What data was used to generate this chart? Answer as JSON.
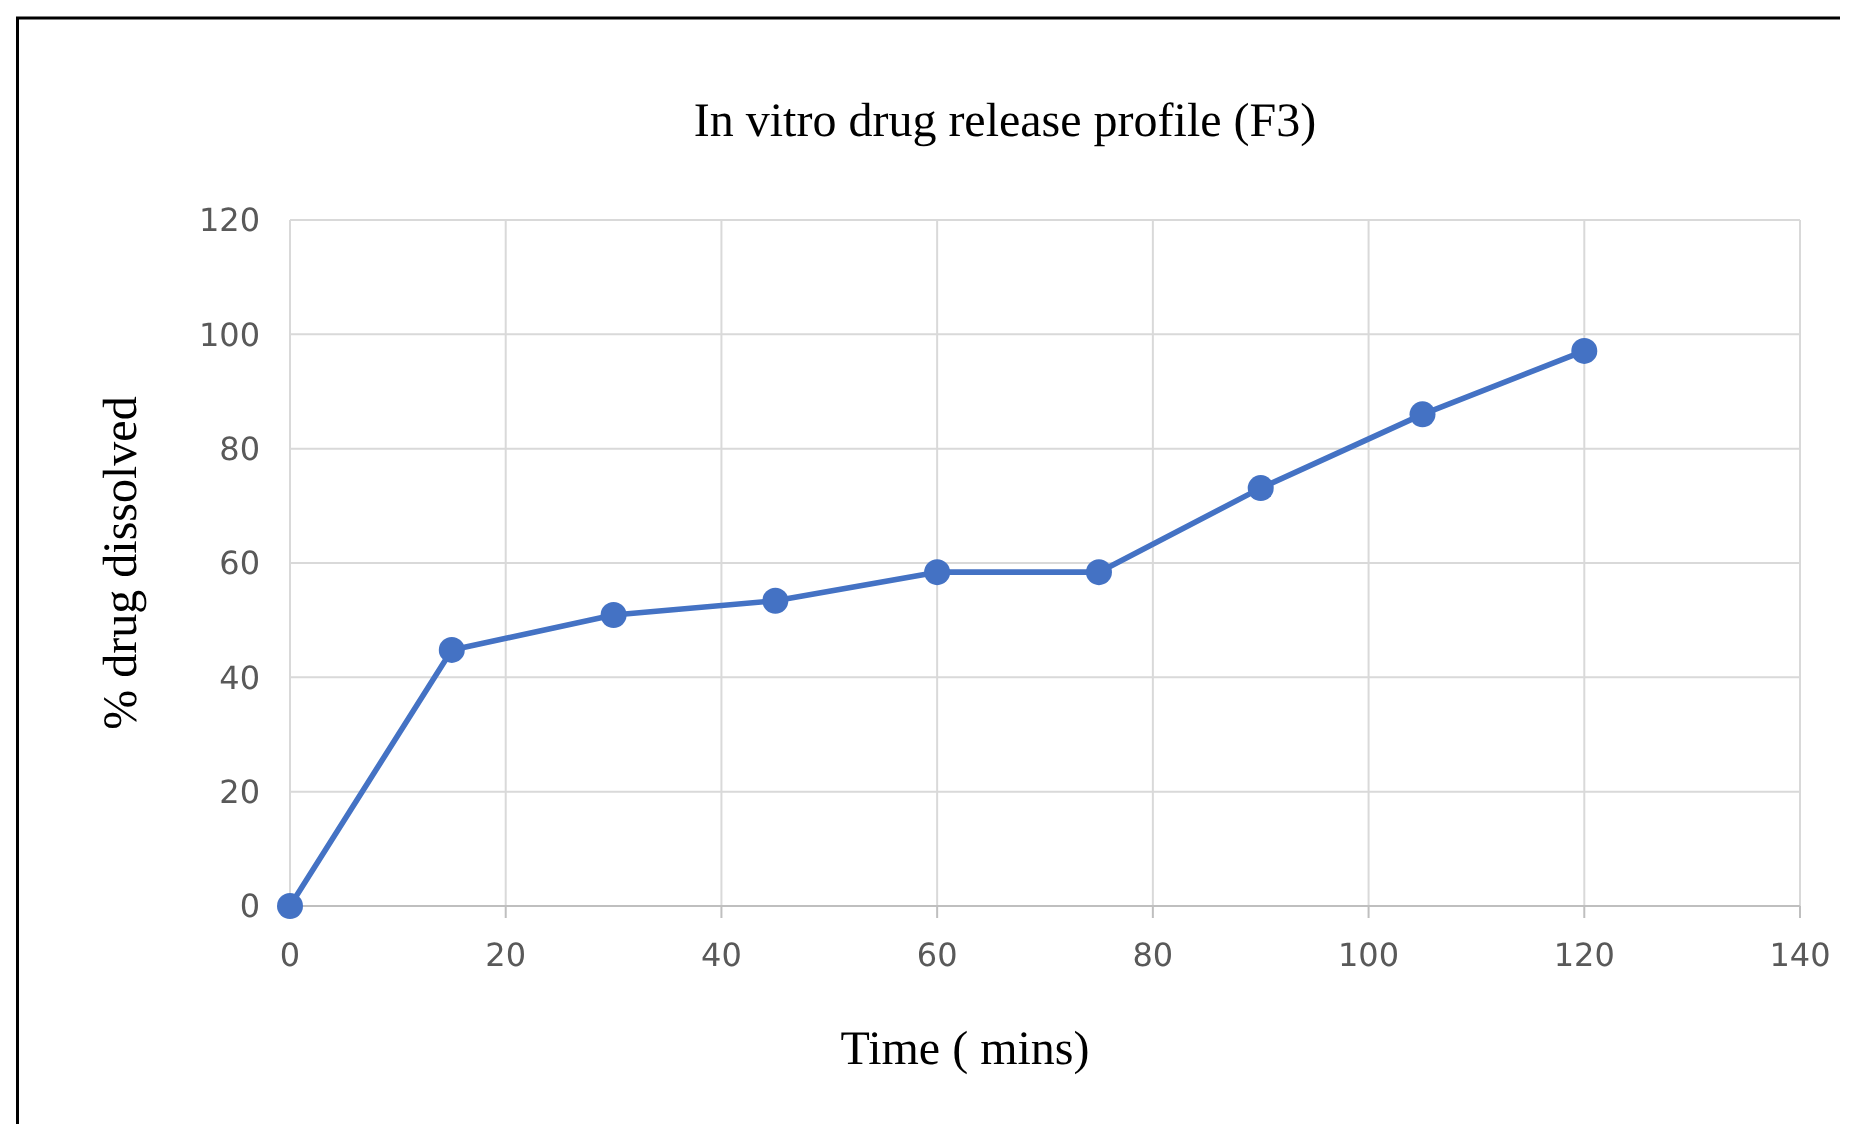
{
  "chart_data": {
    "type": "line",
    "title": "In vitro drug release profile (F3)",
    "xlabel": "Time ( mins)",
    "ylabel": "% drug dissolved",
    "x": [
      0,
      15,
      30,
      45,
      60,
      75,
      90,
      105,
      120
    ],
    "series": [
      {
        "color": "#4472c4",
        "values": [
          0,
          44.8,
          50.9,
          53.4,
          58.4,
          58.4,
          73.1,
          86,
          97.1
        ]
      }
    ],
    "xlim": [
      0,
      140
    ],
    "xticks": [
      0,
      20,
      40,
      60,
      80,
      100,
      120,
      140
    ],
    "ylim": [
      0,
      120
    ],
    "yticks": [
      0,
      20,
      40,
      60,
      80,
      100,
      120
    ],
    "grid": true,
    "marker": "circle",
    "line_style": "solid"
  }
}
